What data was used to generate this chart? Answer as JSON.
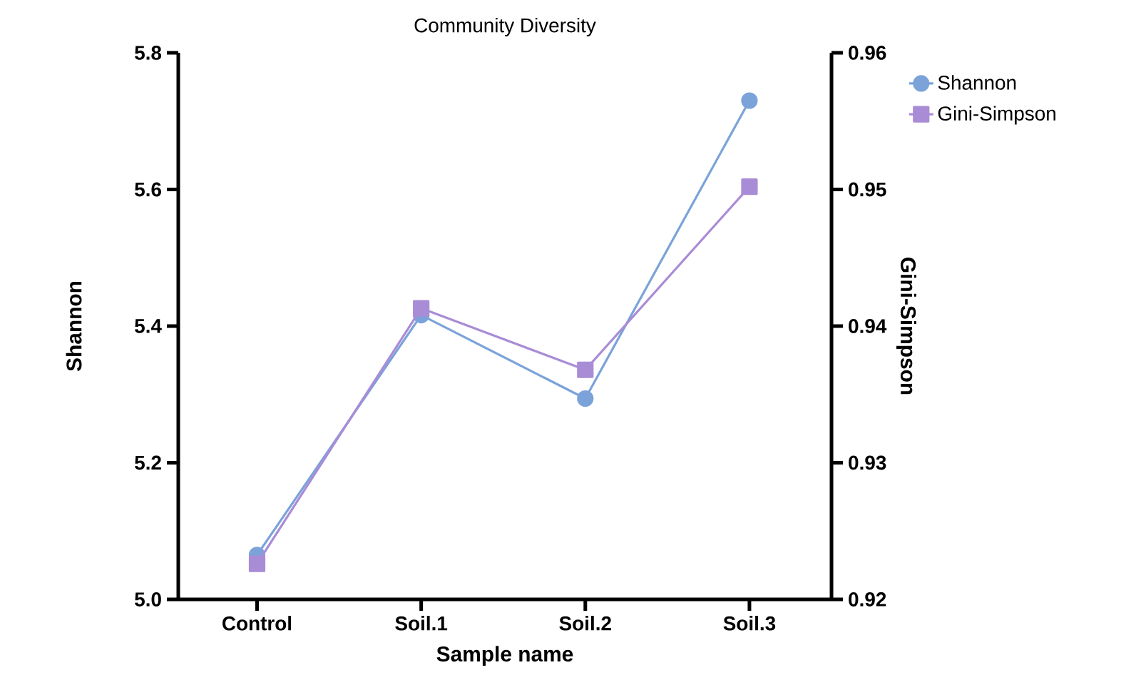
{
  "chart_data": {
    "type": "line",
    "title": "Community Diversity",
    "xlabel": "Sample name",
    "ylabel": "Shannon",
    "y2label": "Gini-Simpson",
    "categories": [
      "Control",
      "Soil.1",
      "Soil.2",
      "Soil.3"
    ],
    "series": [
      {
        "name": "Shannon",
        "color": "#7ba3d9",
        "marker": "circle",
        "values": [
          5.065,
          5.416,
          5.294,
          5.73
        ]
      },
      {
        "name": "Gini-Simpson",
        "color": "#a98cd6",
        "marker": "square",
        "axis": "y2",
        "values": [
          0.9226,
          0.9413,
          0.9368,
          0.9502
        ]
      }
    ],
    "ylim": [
      5.0,
      5.8
    ],
    "yticks": [
      {
        "value": 5.0,
        "label": "5.0"
      },
      5.2,
      5.4,
      5.6,
      5.8
    ],
    "y2lim": [
      0.92,
      0.96
    ],
    "y2ticks": [
      0.92,
      0.93,
      0.94,
      0.95,
      0.96
    ],
    "legend": "top right"
  }
}
